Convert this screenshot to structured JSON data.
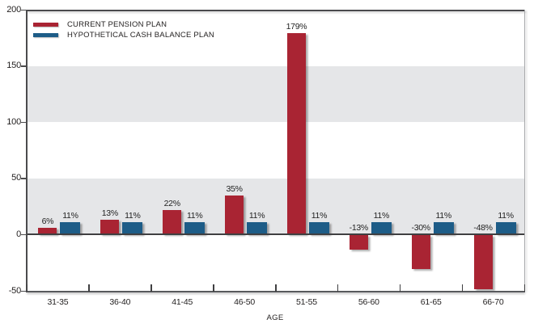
{
  "chart_data": {
    "type": "bar",
    "title": "",
    "xlabel": "AGE",
    "ylabel": "",
    "ylim": [
      -50,
      200
    ],
    "yticks": [
      200,
      150,
      100,
      50,
      0,
      -50
    ],
    "grid": "alternating-bands",
    "band_ranges": [
      [
        100,
        150
      ],
      [
        0,
        50
      ]
    ],
    "band_color": "#E5E6E8",
    "legend_position": "top-left-inside",
    "categories": [
      "31-35",
      "36-40",
      "41-45",
      "46-50",
      "51-55",
      "56-60",
      "61-65",
      "66-70"
    ],
    "series": [
      {
        "name": "CURRENT PENSION PLAN",
        "color": "#A92433",
        "values": [
          6,
          13,
          22,
          35,
          179,
          -13,
          -30,
          -48
        ],
        "labels": [
          "6%",
          "13%",
          "22%",
          "35%",
          "179%",
          "-13%",
          "-30%",
          "-48%"
        ]
      },
      {
        "name": "HYPOTHETICAL CASH BALANCE PLAN",
        "color": "#1D5C87",
        "values": [
          11,
          11,
          11,
          11,
          11,
          11,
          11,
          11
        ],
        "labels": [
          "11%",
          "11%",
          "11%",
          "11%",
          "11%",
          "11%",
          "11%",
          "11%"
        ]
      }
    ]
  }
}
